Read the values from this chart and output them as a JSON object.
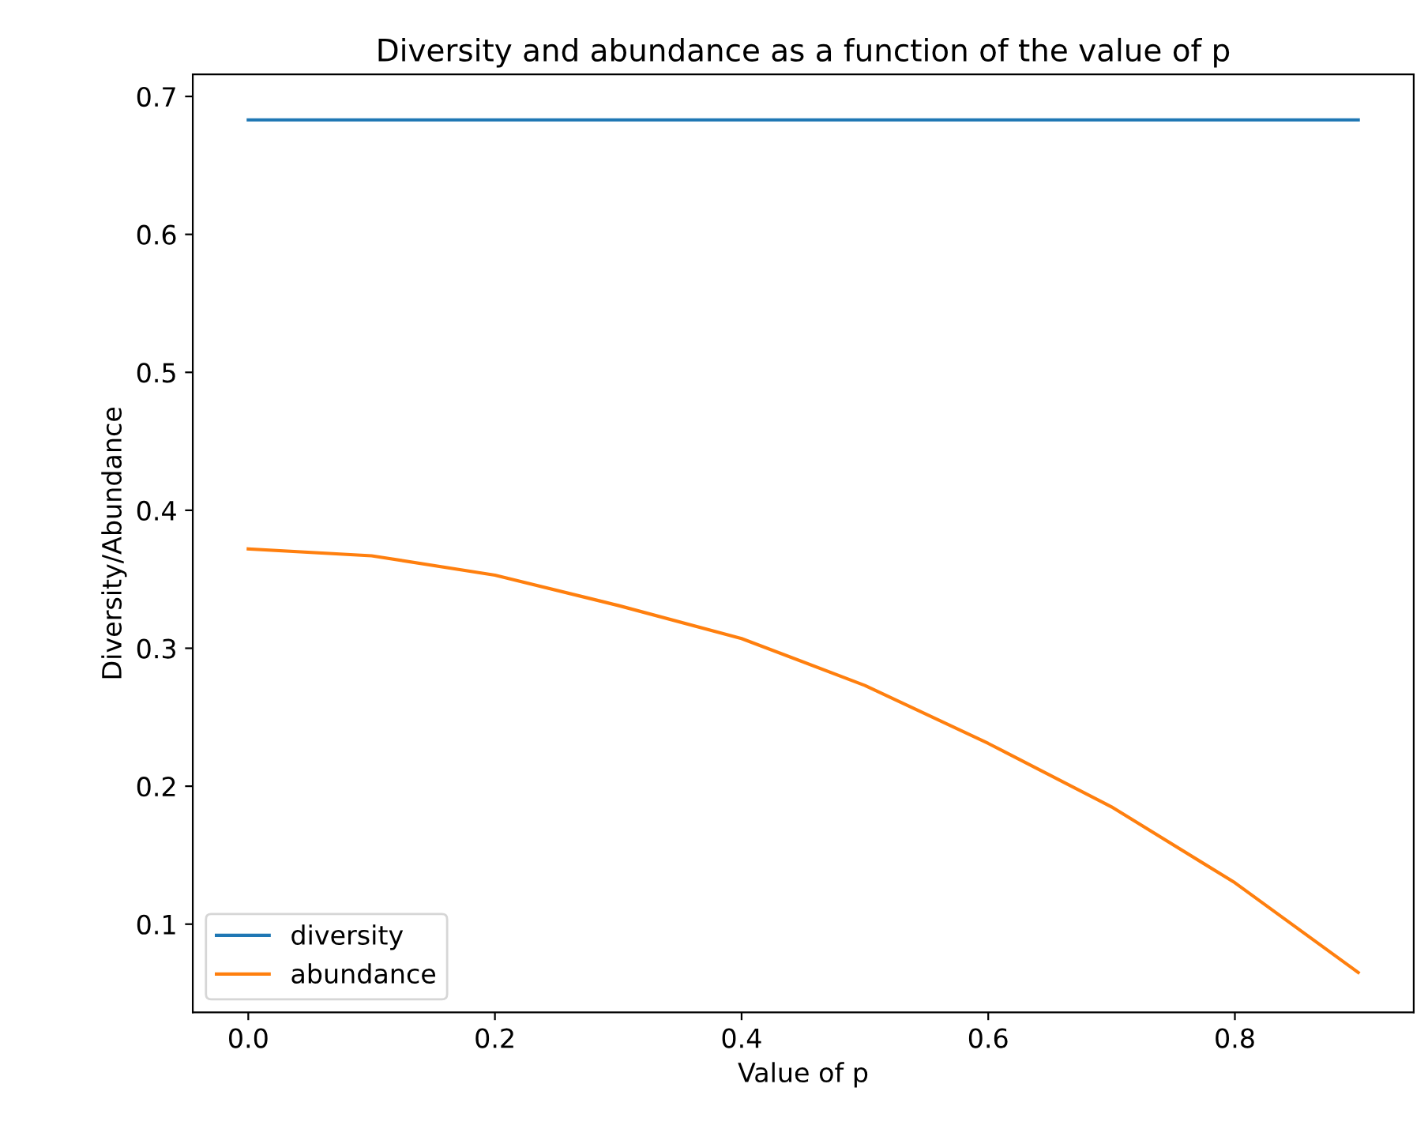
{
  "chart_data": {
    "type": "line",
    "title": "Diversity and abundance as a function of the value of p",
    "xlabel": "Value of p",
    "ylabel": "Diversity/Abundance",
    "x": [
      0.0,
      0.1,
      0.2,
      0.3,
      0.4,
      0.5,
      0.6,
      0.7,
      0.8,
      0.9
    ],
    "series": [
      {
        "name": "diversity",
        "color": "#1f77b4",
        "values": [
          0.683,
          0.683,
          0.683,
          0.683,
          0.683,
          0.683,
          0.683,
          0.683,
          0.683,
          0.683
        ]
      },
      {
        "name": "abundance",
        "color": "#ff7f0e",
        "values": [
          0.372,
          0.367,
          0.353,
          0.331,
          0.307,
          0.273,
          0.231,
          0.185,
          0.13,
          0.065
        ]
      }
    ],
    "xlim": [
      -0.045,
      0.945
    ],
    "ylim": [
      0.036,
      0.716
    ],
    "xticks": [
      {
        "value": 0,
        "label": "0.0"
      },
      0.2,
      0.4,
      0.6,
      0.8
    ],
    "yticks": [
      0.1,
      0.2,
      0.3,
      0.4,
      0.5,
      0.6,
      0.7
    ],
    "grid": false,
    "legend": "bottom left",
    "marker": "none",
    "line_style": "solid"
  }
}
